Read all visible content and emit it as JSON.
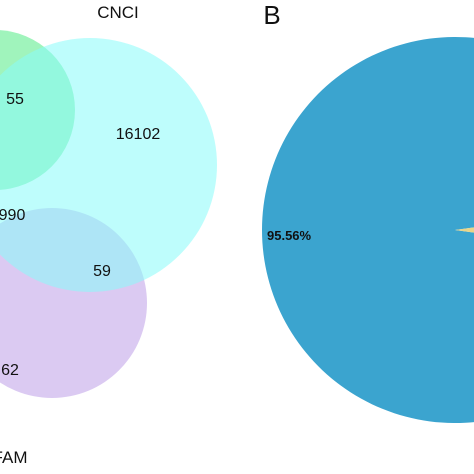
{
  "chart_data": [
    {
      "type": "venn",
      "sets": [
        {
          "name": "CNCI",
          "color": "#88FBFA"
        },
        {
          "name": "",
          "color": "#96F3B5"
        },
        {
          "name": "FAM",
          "color": "#D7C4F1"
        }
      ],
      "regions": [
        {
          "label": "16102",
          "sets": [
            "CNCI"
          ]
        },
        {
          "label": "55",
          "sets": [
            "CNCI",
            "second"
          ]
        },
        {
          "label": "990",
          "sets": [
            "CNCI",
            "second",
            "FAM"
          ]
        },
        {
          "label": "59",
          "sets": [
            "CNCI",
            "FAM"
          ]
        },
        {
          "label": "62",
          "sets": [
            "second",
            "FAM"
          ]
        }
      ],
      "labels": {
        "set_top": "CNCI",
        "set_bottom": "FAM"
      }
    },
    {
      "type": "pie",
      "panel_label": "B",
      "slices": [
        {
          "value": 95.56,
          "label": "95.56%",
          "color": "#3BA4CF"
        },
        {
          "value": 4.44,
          "label": "",
          "color": "#E8D58B"
        }
      ]
    }
  ]
}
